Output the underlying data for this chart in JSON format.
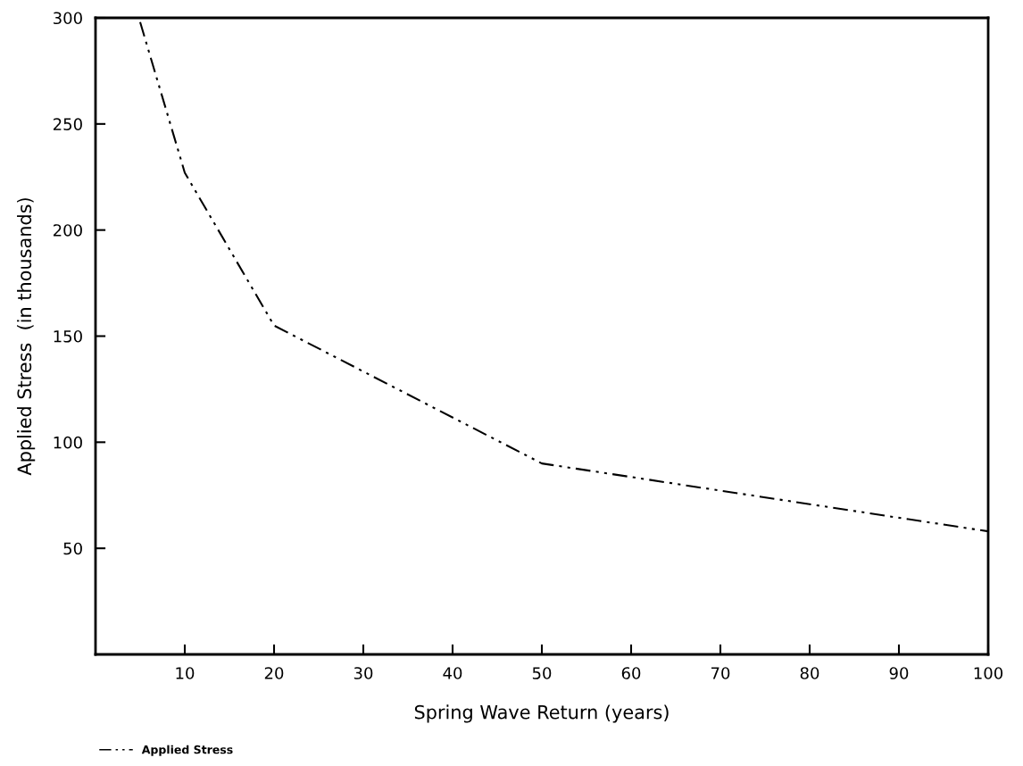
{
  "chart_data": {
    "type": "line",
    "xlabel": "Spring Wave Return (years)",
    "ylabel": "Applied Stress  (in thousands)",
    "x": [
      5,
      10,
      20,
      50,
      100
    ],
    "series": [
      {
        "name": "Applied Stress",
        "color": "#000000",
        "values": [
          298,
          227,
          155,
          90,
          58
        ]
      }
    ],
    "xlim": [
      0,
      100
    ],
    "xticks": [
      10,
      20,
      30,
      40,
      50,
      60,
      70,
      80,
      90,
      100
    ],
    "ylim": [
      0,
      300
    ],
    "yticks": [
      50,
      100,
      150,
      200,
      250,
      300
    ],
    "line_style": "dashdot",
    "marker": "none",
    "grid": false,
    "legend": "bottom left"
  }
}
